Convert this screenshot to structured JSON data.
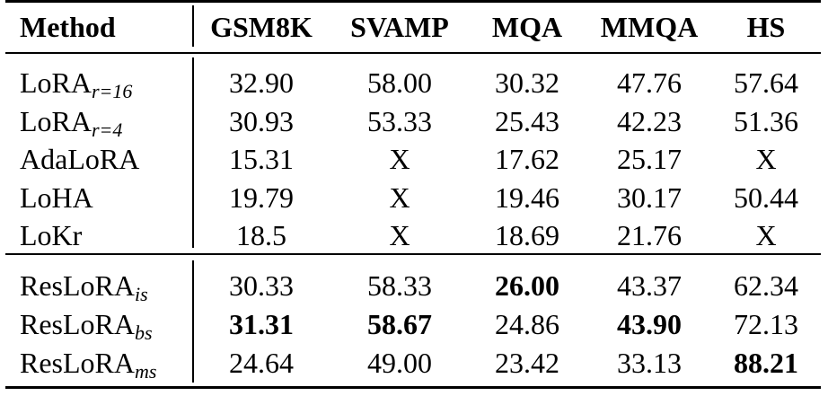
{
  "table": {
    "headers": [
      "Method",
      "GSM8K",
      "SVAMP",
      "MQA",
      "MMQA",
      "HS"
    ],
    "group1": [
      {
        "method": "LoRA",
        "sub": "r=16",
        "cells": [
          "32.90",
          "58.00",
          "30.32",
          "47.76",
          "57.64"
        ],
        "bold": [
          false,
          false,
          false,
          false,
          false
        ]
      },
      {
        "method": "LoRA",
        "sub": "r=4",
        "cells": [
          "30.93",
          "53.33",
          "25.43",
          "42.23",
          "51.36"
        ],
        "bold": [
          false,
          false,
          false,
          false,
          false
        ]
      },
      {
        "method": "AdaLoRA",
        "sub": "",
        "cells": [
          "15.31",
          "X",
          "17.62",
          "25.17",
          "X"
        ],
        "bold": [
          false,
          false,
          false,
          false,
          false
        ]
      },
      {
        "method": "LoHA",
        "sub": "",
        "cells": [
          "19.79",
          "X",
          "19.46",
          "30.17",
          "50.44"
        ],
        "bold": [
          false,
          false,
          false,
          false,
          false
        ]
      },
      {
        "method": "LoKr",
        "sub": "",
        "cells": [
          "18.5",
          "X",
          "18.69",
          "21.76",
          "X"
        ],
        "bold": [
          false,
          false,
          false,
          false,
          false
        ]
      }
    ],
    "group2": [
      {
        "method": "ResLoRA",
        "sub": "is",
        "cells": [
          "30.33",
          "58.33",
          "26.00",
          "43.37",
          "62.34"
        ],
        "bold": [
          false,
          false,
          true,
          false,
          false
        ]
      },
      {
        "method": "ResLoRA",
        "sub": "bs",
        "cells": [
          "31.31",
          "58.67",
          "24.86",
          "43.90",
          "72.13"
        ],
        "bold": [
          true,
          true,
          false,
          true,
          false
        ]
      },
      {
        "method": "ResLoRA",
        "sub": "ms",
        "cells": [
          "24.64",
          "49.00",
          "23.42",
          "33.13",
          "88.21"
        ],
        "bold": [
          false,
          false,
          false,
          false,
          true
        ]
      }
    ]
  }
}
